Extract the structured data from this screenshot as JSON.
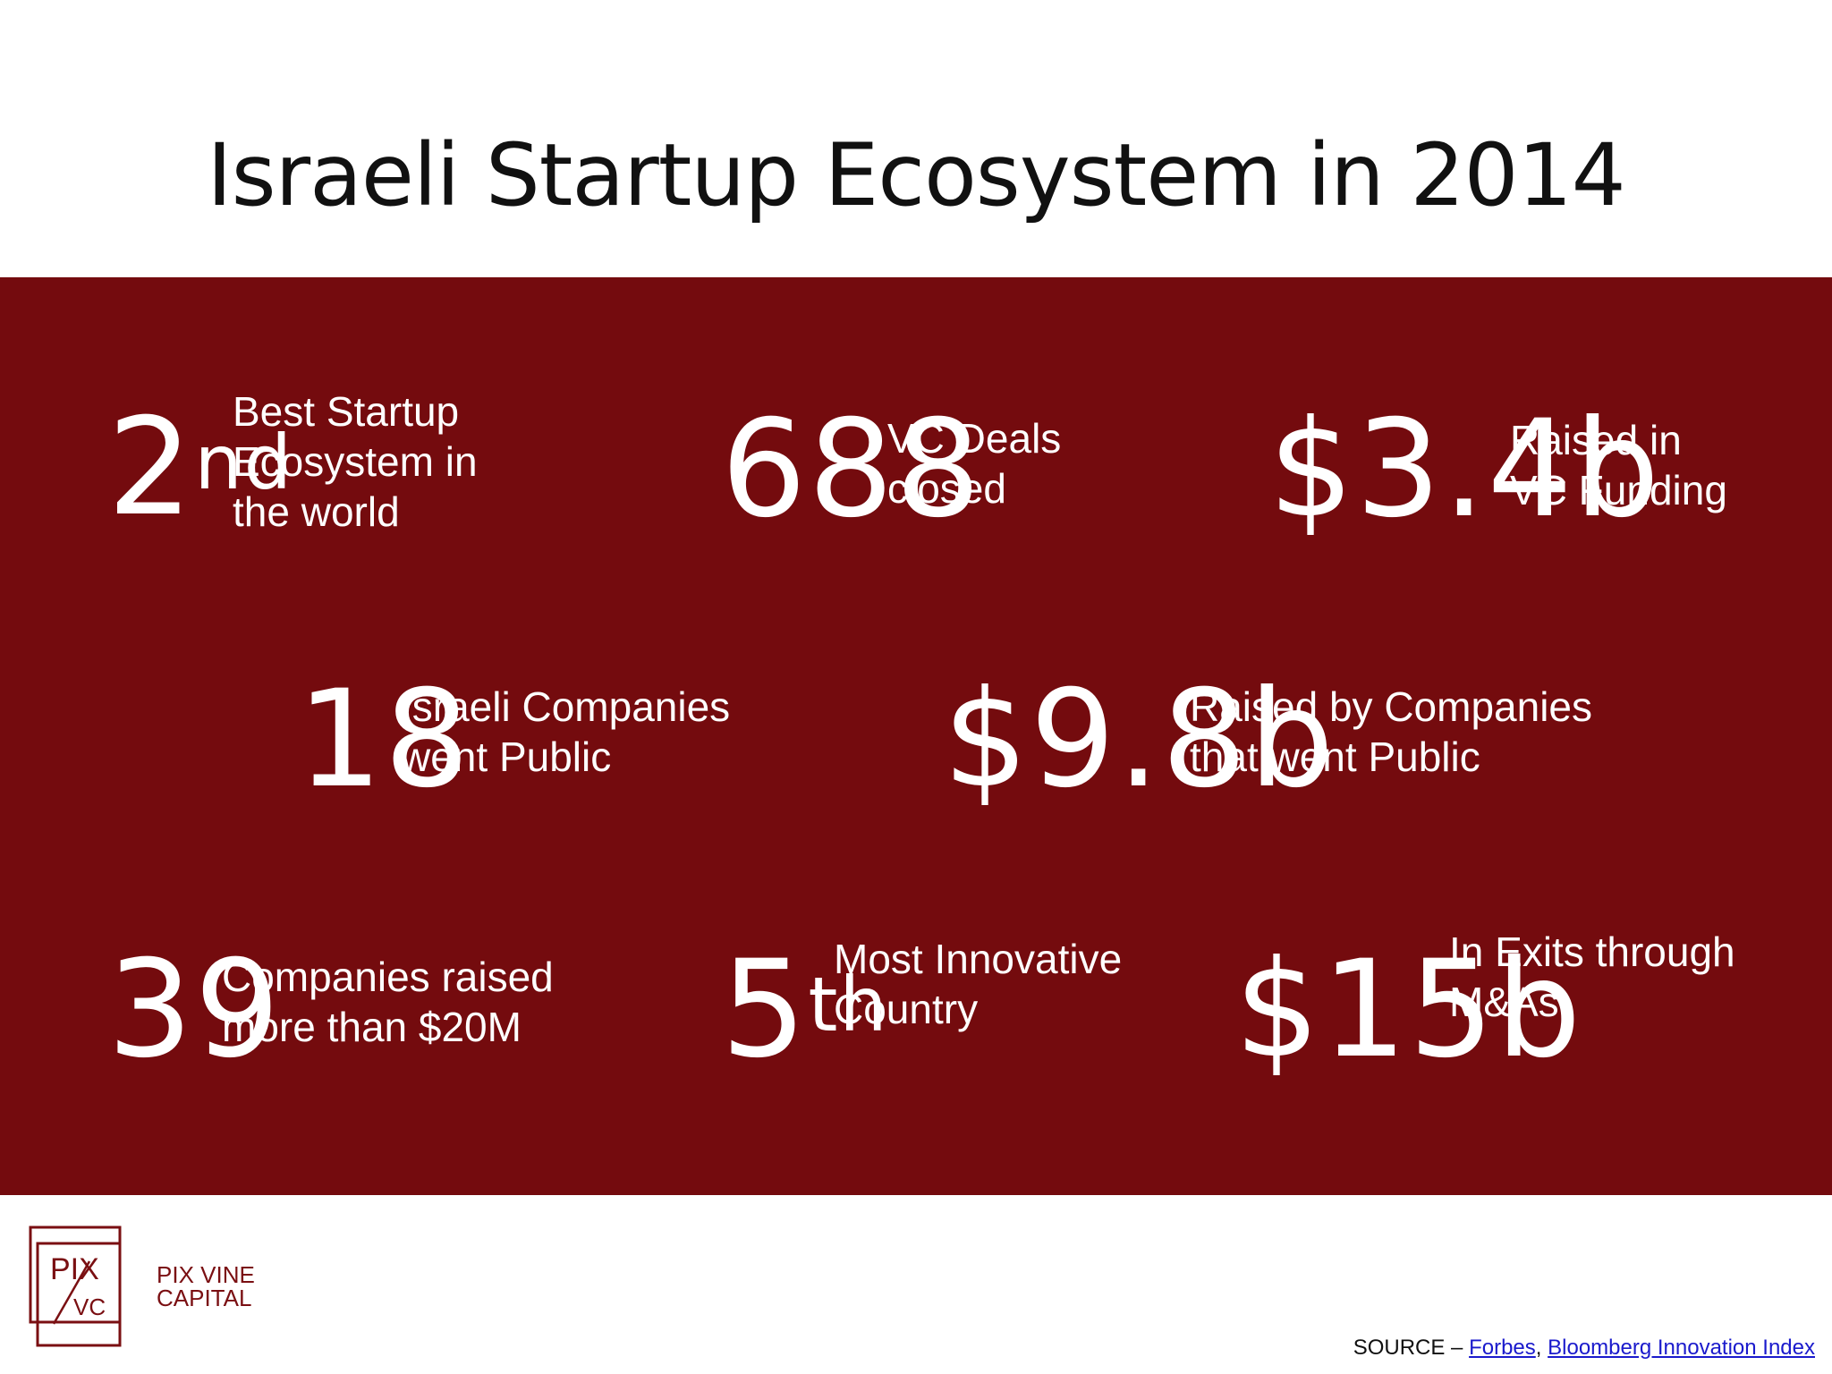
{
  "title": "Israeli Startup Ecosystem in 2014",
  "colors": {
    "panel": "#740b0e",
    "text_light": "#ffffff",
    "brand": "#7a0f12"
  },
  "stats": [
    {
      "value": "2",
      "suffix": "nd",
      "desc": "Best Startup\nEcosystem in\nthe world"
    },
    {
      "value": "688",
      "suffix": "",
      "desc": "VC Deals\nclosed"
    },
    {
      "value": "$3.4b",
      "suffix": "",
      "desc": "Raised in\nVC Funding"
    },
    {
      "value": "18",
      "suffix": "",
      "desc": "Israeli Companies\nwent Public"
    },
    {
      "value": "$9.8b",
      "suffix": "",
      "desc": "Raised by Companies\nthat went Public"
    },
    {
      "value": "39",
      "suffix": "",
      "desc": "Companies raised\nmore than $20M"
    },
    {
      "value": "5",
      "suffix": "th",
      "desc": "Most Innovative\nCountry"
    },
    {
      "value": "$15b",
      "suffix": "",
      "desc": "In Exits through\nM&As"
    }
  ],
  "logo": {
    "mark_top": "PIX",
    "mark_bottom": "VC",
    "line1": "PIX VINE",
    "line2": "CAPITAL"
  },
  "source": {
    "prefix": "SOURCE – ",
    "link1": "Forbes",
    "separator": ", ",
    "link2": "Bloomberg Innovation Index"
  }
}
